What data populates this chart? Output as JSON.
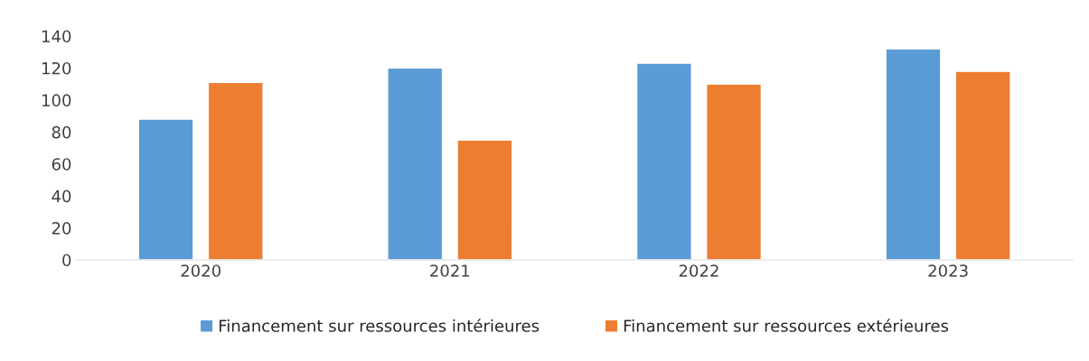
{
  "chart_data": {
    "type": "bar",
    "categories": [
      "2020",
      "2021",
      "2022",
      "2023"
    ],
    "series": [
      {
        "name": "Financement sur ressources intérieures",
        "color": "#5b9bd5",
        "values": [
          88,
          120,
          123,
          132
        ]
      },
      {
        "name": "Financement sur ressources extérieures",
        "color": "#ed7d31",
        "values": [
          111,
          75,
          110,
          118
        ]
      }
    ],
    "ylim": [
      0,
      140
    ],
    "yticks": [
      0,
      20,
      40,
      60,
      80,
      100,
      120,
      140
    ],
    "grid": false,
    "legend": "bottom"
  }
}
